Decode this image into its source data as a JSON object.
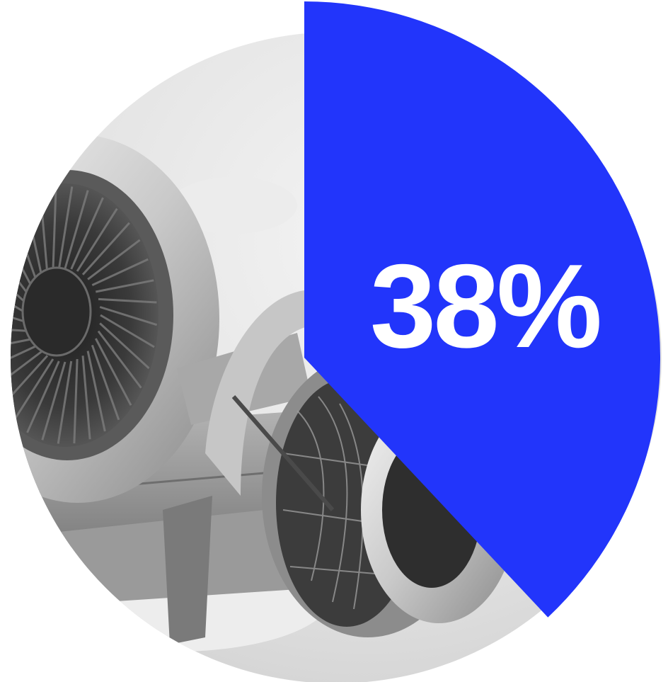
{
  "chart_data": {
    "type": "pie",
    "values": [
      38
    ],
    "value_label": "38%",
    "total": 100,
    "highlight_color": "#2235FB",
    "label_color": "#FFFFFF",
    "background_image": "airplane-jet-engines-photo"
  }
}
